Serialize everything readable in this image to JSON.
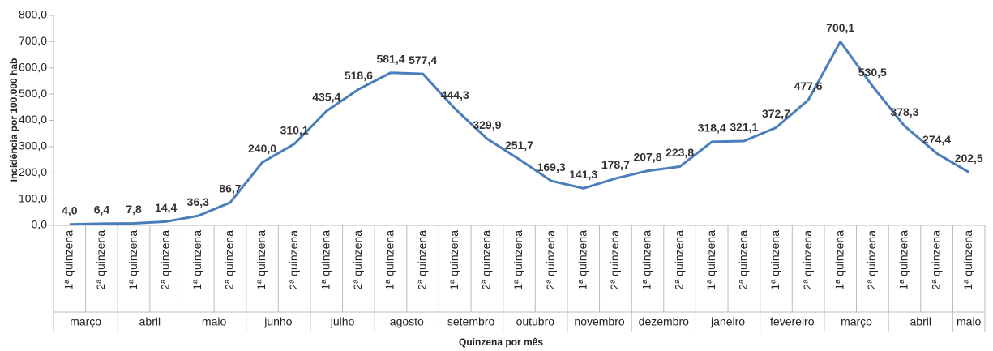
{
  "chart_data": {
    "type": "line",
    "x_label": "Quinzena por mês",
    "y_label": "Incidência por 100.000 hab",
    "categories": [
      "1ª quinzena",
      "2ª quinzena",
      "1ª quinzena",
      "2ª quinzena",
      "1ª quinzena",
      "2ª quinzena",
      "1ª quinzena",
      "2ª quinzena",
      "1ª quinzena",
      "2ª quinzena",
      "1ª quinzena",
      "2ª quinzena",
      "1ª quinzena",
      "2ª quinzena",
      "1ª quinzena",
      "2ª quinzena",
      "1ª quinzena",
      "2ª quinzena",
      "1ª quinzena",
      "2ª quinzena",
      "1ª quinzena",
      "2ª quinzena",
      "1ª quinzena",
      "2ª quinzena",
      "1ª quinzena",
      "2ª quinzena",
      "1ª quinzena",
      "2ª quinzena",
      "1ª quinzena"
    ],
    "category_groups": [
      {
        "name": "março",
        "count": 2
      },
      {
        "name": "abril",
        "count": 2
      },
      {
        "name": "maio",
        "count": 2
      },
      {
        "name": "junho",
        "count": 2
      },
      {
        "name": "julho",
        "count": 2
      },
      {
        "name": "agosto",
        "count": 2
      },
      {
        "name": "setembro",
        "count": 2
      },
      {
        "name": "outubro",
        "count": 2
      },
      {
        "name": "novembro",
        "count": 2
      },
      {
        "name": "dezembro",
        "count": 2
      },
      {
        "name": "janeiro",
        "count": 2
      },
      {
        "name": "fevereiro",
        "count": 2
      },
      {
        "name": "março",
        "count": 2
      },
      {
        "name": "abril",
        "count": 2
      },
      {
        "name": "maio",
        "count": 1
      }
    ],
    "series": [
      {
        "color": "#4a7ebb",
        "values": [
          4.0,
          6.4,
          7.8,
          14.4,
          36.3,
          86.7,
          240.0,
          310.1,
          435.4,
          518.6,
          581.4,
          577.4,
          444.3,
          329.9,
          251.7,
          169.3,
          141.3,
          178.7,
          207.8,
          223.8,
          318.4,
          321.1,
          372.7,
          477.6,
          700.1,
          530.5,
          378.3,
          274.4,
          202.5
        ],
        "value_labels": [
          "4,0",
          "6,4",
          "7,8",
          "14,4",
          "36,3",
          "86,7",
          "240,0",
          "310,1",
          "435,4",
          "518,6",
          "581,4",
          "577,4",
          "444,3",
          "329,9",
          "251,7",
          "169,3",
          "141,3",
          "178,7",
          "207,8",
          "223,8",
          "318,4",
          "321,1",
          "372,7",
          "477,6",
          "700,1",
          "530,5",
          "378,3",
          "274,4",
          "202,5"
        ]
      }
    ],
    "ylim": [
      0,
      800
    ],
    "yticks": [
      {
        "value": 0,
        "label": "0,0"
      },
      {
        "value": 100,
        "label": "100,0"
      },
      {
        "value": 200,
        "label": "200,0"
      },
      {
        "value": 300,
        "label": "300,0"
      },
      {
        "value": 400,
        "label": "400,0"
      },
      {
        "value": 500,
        "label": "500,0"
      },
      {
        "value": 600,
        "label": "600,0"
      },
      {
        "value": 700,
        "label": "700,0"
      },
      {
        "value": 800,
        "label": "800,0"
      }
    ],
    "grid": false
  }
}
